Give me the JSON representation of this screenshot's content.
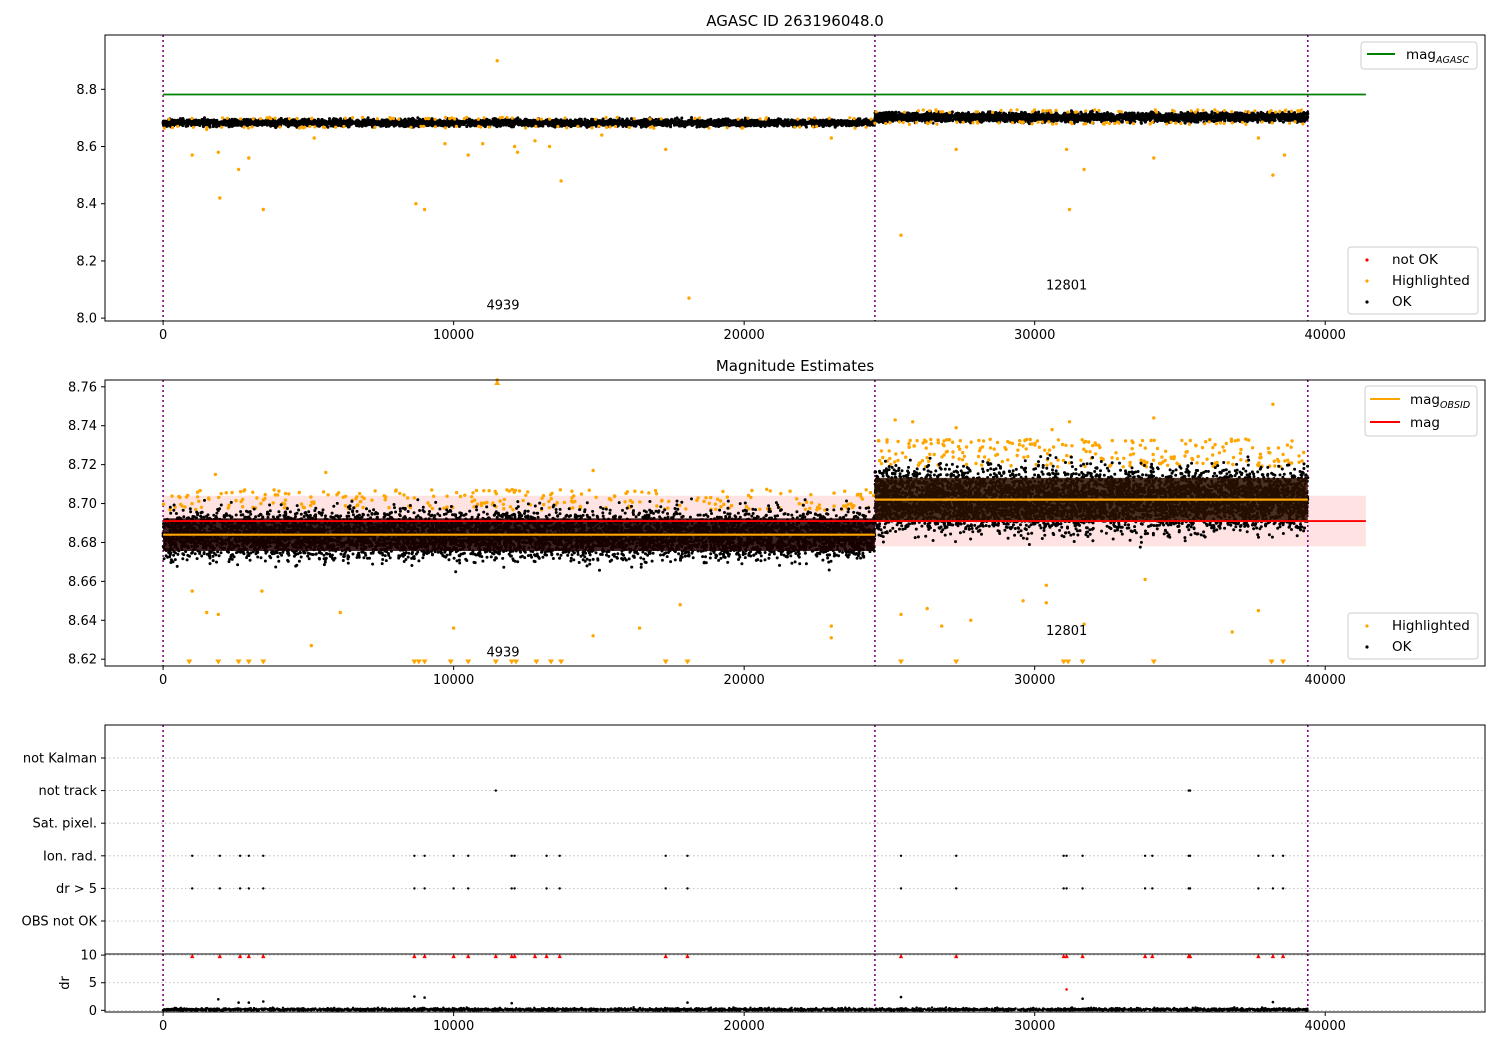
{
  "chart_data": [
    {
      "type": "scatter",
      "title": "AGASC ID 263196048.0",
      "xlim": [
        -2000,
        45500
      ],
      "ylim": [
        7.99,
        8.99
      ],
      "xticks": [
        0,
        10000,
        20000,
        30000,
        40000
      ],
      "yticks": [
        8.0,
        8.2,
        8.4,
        8.6,
        8.8
      ],
      "ytick_labels": [
        "8.0",
        "8.2",
        "8.4",
        "8.6",
        "8.8"
      ],
      "obsid_boundaries": [
        0,
        24500,
        39400
      ],
      "obsid_labels": [
        {
          "text": "4939",
          "x": 11700,
          "y": 8.03
        },
        {
          "text": "12801",
          "x": 31100,
          "y": 8.1
        }
      ],
      "reference_lines": [
        {
          "name": "mag_AGASC",
          "y": 8.782,
          "x": [
            0,
            41400
          ],
          "color": "#008000"
        }
      ],
      "series": [
        {
          "name": "OK",
          "color": "#000000",
          "segments": [
            {
              "x": [
                0,
                24500
              ],
              "center": 8.683,
              "spread": 0.012
            },
            {
              "x": [
                24500,
                39400
              ],
              "center": 8.703,
              "spread": 0.016
            }
          ]
        },
        {
          "name": "Highlighted",
          "color": "#ffa500",
          "points": [
            [
              1000,
              8.57
            ],
            [
              1900,
              8.58
            ],
            [
              1950,
              8.42
            ],
            [
              2600,
              8.52
            ],
            [
              2950,
              8.56
            ],
            [
              3450,
              8.38
            ],
            [
              8700,
              8.4
            ],
            [
              9000,
              8.38
            ],
            [
              9700,
              8.61
            ],
            [
              10500,
              8.57
            ],
            [
              11000,
              8.61
            ],
            [
              11500,
              8.9
            ],
            [
              12100,
              8.6
            ],
            [
              12200,
              8.58
            ],
            [
              12800,
              8.62
            ],
            [
              13300,
              8.6
            ],
            [
              13700,
              8.48
            ],
            [
              17300,
              8.59
            ],
            [
              18100,
              8.07
            ],
            [
              23000,
              8.63
            ],
            [
              25400,
              8.29
            ],
            [
              27300,
              8.59
            ],
            [
              31100,
              8.59
            ],
            [
              31200,
              8.38
            ],
            [
              31700,
              8.52
            ],
            [
              34100,
              8.56
            ],
            [
              37700,
              8.63
            ],
            [
              38200,
              8.5
            ],
            [
              38600,
              8.57
            ],
            [
              1500,
              8.66
            ],
            [
              5200,
              8.63
            ],
            [
              15100,
              8.64
            ]
          ]
        },
        {
          "name": "not OK",
          "color": "#ff0000",
          "points": []
        }
      ],
      "legend": {
        "position": "lower-right",
        "entries": [
          "not OK",
          "Highlighted",
          "OK"
        ]
      },
      "legend_lines": {
        "position": "upper-right",
        "entries": [
          {
            "label": "mag",
            "subscript": "AGASC",
            "color": "#008000"
          }
        ]
      }
    },
    {
      "type": "scatter",
      "title": "Magnitude Estimates",
      "xlim": [
        -2000,
        45500
      ],
      "ylim": [
        8.6165,
        8.7635
      ],
      "xticks": [
        0,
        10000,
        20000,
        30000,
        40000
      ],
      "yticks": [
        8.62,
        8.64,
        8.66,
        8.68,
        8.7,
        8.72,
        8.74,
        8.76
      ],
      "ytick_labels": [
        "8.62",
        "8.64",
        "8.66",
        "8.68",
        "8.70",
        "8.72",
        "8.74",
        "8.76"
      ],
      "obsid_boundaries": [
        0,
        24500,
        39400
      ],
      "obsid_labels": [
        {
          "text": "4939",
          "x": 11700,
          "y": 8.6215
        },
        {
          "text": "12801",
          "x": 31100,
          "y": 8.6325
        }
      ],
      "mag": {
        "value": 8.691,
        "band": [
          8.678,
          8.704
        ],
        "x": [
          0,
          41400
        ],
        "color": "#ff0000"
      },
      "mag_obsid": [
        {
          "value": 8.684,
          "x": [
            0,
            24500
          ]
        },
        {
          "value": 8.702,
          "x": [
            24500,
            39400
          ]
        }
      ],
      "series": [
        {
          "name": "OK",
          "color": "#000000",
          "segments": [
            {
              "x": [
                0,
                24500
              ],
              "center": 8.684,
              "spread": 0.012
            },
            {
              "x": [
                24500,
                39400
              ],
              "center": 8.702,
              "spread": 0.016
            }
          ]
        },
        {
          "name": "Highlighted",
          "color": "#ffa500",
          "points": [
            [
              1000,
              8.655
            ],
            [
              1500,
              8.644
            ],
            [
              1900,
              8.643
            ],
            [
              3400,
              8.655
            ],
            [
              5100,
              8.627
            ],
            [
              6100,
              8.644
            ],
            [
              10000,
              8.636
            ],
            [
              14800,
              8.632
            ],
            [
              16400,
              8.636
            ],
            [
              17800,
              8.648
            ],
            [
              23000,
              8.637
            ],
            [
              23000,
              8.631
            ],
            [
              25400,
              8.643
            ],
            [
              26300,
              8.646
            ],
            [
              26800,
              8.637
            ],
            [
              27800,
              8.64
            ],
            [
              29600,
              8.65
            ],
            [
              30400,
              8.649
            ],
            [
              30400,
              8.658
            ],
            [
              31700,
              8.638
            ],
            [
              33800,
              8.661
            ],
            [
              36800,
              8.634
            ],
            [
              37700,
              8.645
            ],
            [
              11500,
              8.7635
            ],
            [
              1800,
              8.715
            ],
            [
              5600,
              8.716
            ],
            [
              14800,
              8.717
            ],
            [
              25200,
              8.743
            ],
            [
              25800,
              8.742
            ],
            [
              31200,
              8.742
            ],
            [
              34100,
              8.744
            ],
            [
              38200,
              8.751
            ],
            [
              30600,
              8.738
            ],
            [
              27300,
              8.739
            ]
          ]
        }
      ],
      "clipped_low_x": [
        900,
        1900,
        2600,
        2950,
        3450,
        8650,
        8800,
        9000,
        9900,
        10500,
        11450,
        12000,
        12150,
        12850,
        13350,
        13700,
        17300,
        18050,
        25400,
        27300,
        31000,
        31150,
        31650,
        34100,
        38150,
        38550
      ],
      "legend": {
        "position": "lower-right",
        "entries": [
          "Highlighted",
          "OK"
        ]
      },
      "legend_lines": {
        "position": "upper-right",
        "entries": [
          {
            "label": "mag",
            "subscript": "OBSID",
            "color": "#ffa500"
          },
          {
            "label": "mag",
            "subscript": "",
            "color": "#ff0000"
          }
        ]
      }
    },
    {
      "type": "scatter",
      "title": "",
      "xlim": [
        -2000,
        45500
      ],
      "xticks": [
        0,
        10000,
        20000,
        30000,
        40000
      ],
      "obsid_boundaries": [
        0,
        24500,
        39400
      ],
      "flag_rows": [
        "not Kalman",
        "not track",
        "Sat. pixel.",
        "Ion. rad.",
        "dr > 5",
        "OBS not OK"
      ],
      "flags": {
        "not track": [
          11450,
          35300,
          35350
        ],
        "Ion. rad.": [
          1000,
          1950,
          2650,
          2950,
          3450,
          8650,
          9000,
          10000,
          10500,
          12000,
          12100,
          13200,
          13650,
          17300,
          18050,
          25400,
          27300,
          31000,
          31100,
          31650,
          33800,
          34050,
          35300,
          35350,
          37700,
          38200,
          38550
        ],
        "dr > 5": [
          1000,
          1950,
          2650,
          2950,
          3450,
          8650,
          9000,
          10000,
          10500,
          12000,
          12100,
          13200,
          13650,
          17300,
          18050,
          25400,
          27300,
          31000,
          31100,
          31650,
          33800,
          34050,
          35300,
          35350,
          37700,
          38200,
          38550
        ]
      },
      "dr": {
        "ylabel": "dr",
        "ylim": [
          -0.3,
          10.2
        ],
        "yticks": [
          0,
          5,
          10
        ],
        "ytick_labels": [
          "0",
          "5",
          "10"
        ],
        "capped_red_x": [
          1000,
          1950,
          2650,
          2950,
          3450,
          8650,
          9000,
          10000,
          10500,
          11450,
          12000,
          12100,
          12800,
          13200,
          13650,
          17300,
          18050,
          25400,
          27300,
          31000,
          31100,
          31650,
          33800,
          34050,
          35300,
          35350,
          37700,
          38200,
          38550
        ],
        "extra_points": [
          [
            1900,
            2.0
          ],
          [
            2600,
            1.4
          ],
          [
            2950,
            1.4
          ],
          [
            3450,
            1.6
          ],
          [
            8650,
            2.5
          ],
          [
            9000,
            2.3
          ],
          [
            12000,
            1.3
          ],
          [
            18050,
            1.4
          ],
          [
            25400,
            2.4
          ],
          [
            31650,
            2.1
          ],
          [
            38200,
            1.5
          ],
          [
            31100,
            3.8
          ]
        ]
      }
    }
  ]
}
